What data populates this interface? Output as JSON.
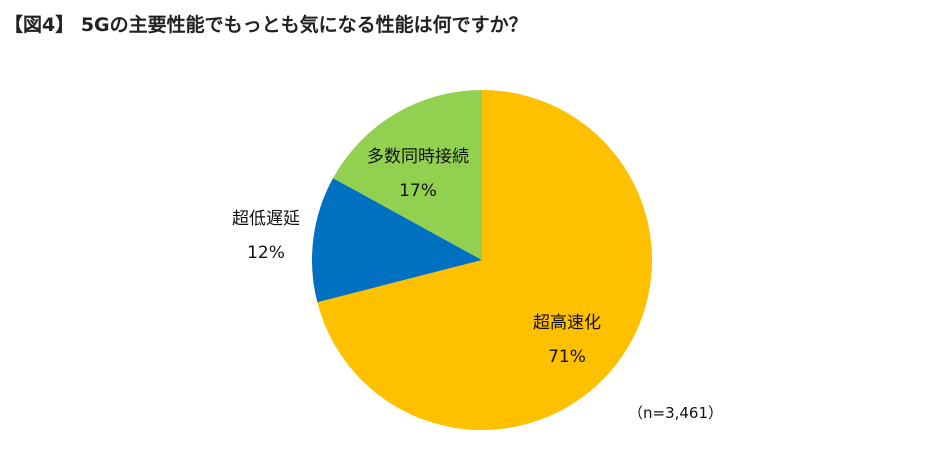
{
  "chart_data": {
    "type": "pie",
    "title": "【図4】 5Gの主要性能でもっとも気になる性能は何ですか？",
    "note": "（n=3,461）",
    "start": "top",
    "direction": "clockwise",
    "slices": [
      {
        "label": "超高速化",
        "value": 71,
        "value_label": "71%",
        "color": "#FFC000"
      },
      {
        "label": "超低遅延",
        "value": 12,
        "value_label": "12%",
        "color": "#0070C0"
      },
      {
        "label": "多数同時接続",
        "value": 17,
        "value_label": "17%",
        "color": "#92D050"
      }
    ]
  }
}
